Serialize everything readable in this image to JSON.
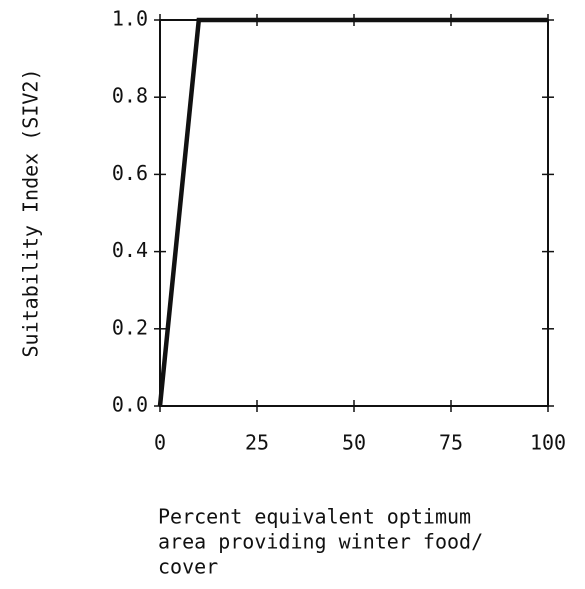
{
  "chart_data": {
    "type": "line",
    "ylabel": "Suitability Index (SIV2)",
    "xlabel": [
      "Percent equivalent optimum",
      "area providing winter food/",
      "cover"
    ],
    "x": [
      0,
      10,
      100
    ],
    "series": [
      {
        "color": "#111111",
        "values": [
          0,
          1,
          1
        ]
      }
    ],
    "xlim": [
      0,
      100
    ],
    "xticks": [
      0,
      25,
      50,
      75,
      100
    ],
    "ylim": [
      0,
      1
    ],
    "yticks": [
      {
        "value": 0,
        "label": "0.0"
      },
      0.2,
      0.4,
      0.6,
      0.8,
      {
        "value": 1,
        "label": "1.0"
      }
    ],
    "grid": false
  }
}
